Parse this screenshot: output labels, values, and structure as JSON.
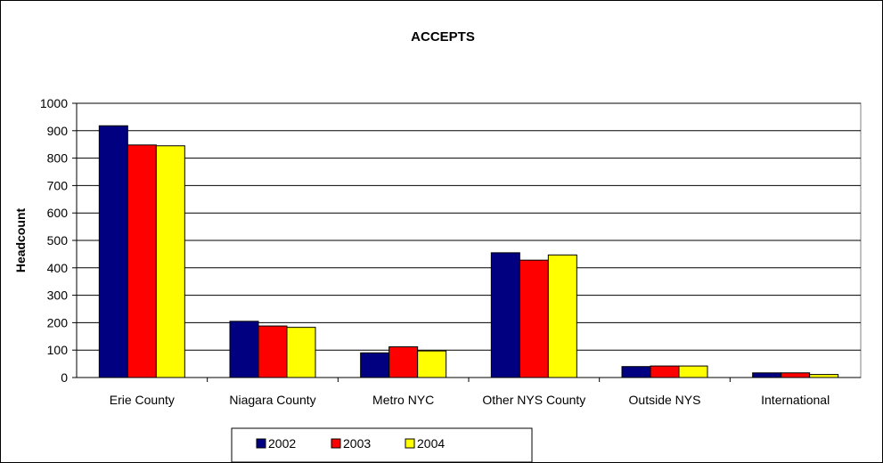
{
  "chart_data": {
    "type": "bar",
    "title": "ACCEPTS",
    "xlabel": "",
    "ylabel": "Headcount",
    "ylim": [
      0,
      1000
    ],
    "yticks": [
      0,
      100,
      200,
      300,
      400,
      500,
      600,
      700,
      800,
      900,
      1000
    ],
    "grid": true,
    "legend_position": "bottom",
    "categories": [
      "Erie County",
      "Niagara County",
      "Metro NYC",
      "Other NYS County",
      "Outside NYS",
      "International"
    ],
    "series": [
      {
        "name": "2002",
        "color": "#000080",
        "values": [
          918,
          205,
          90,
          455,
          40,
          17
        ]
      },
      {
        "name": "2003",
        "color": "#ff0000",
        "values": [
          848,
          188,
          112,
          428,
          42,
          17
        ]
      },
      {
        "name": "2004",
        "color": "#ffff00",
        "values": [
          845,
          183,
          97,
          447,
          42,
          11
        ]
      }
    ]
  }
}
